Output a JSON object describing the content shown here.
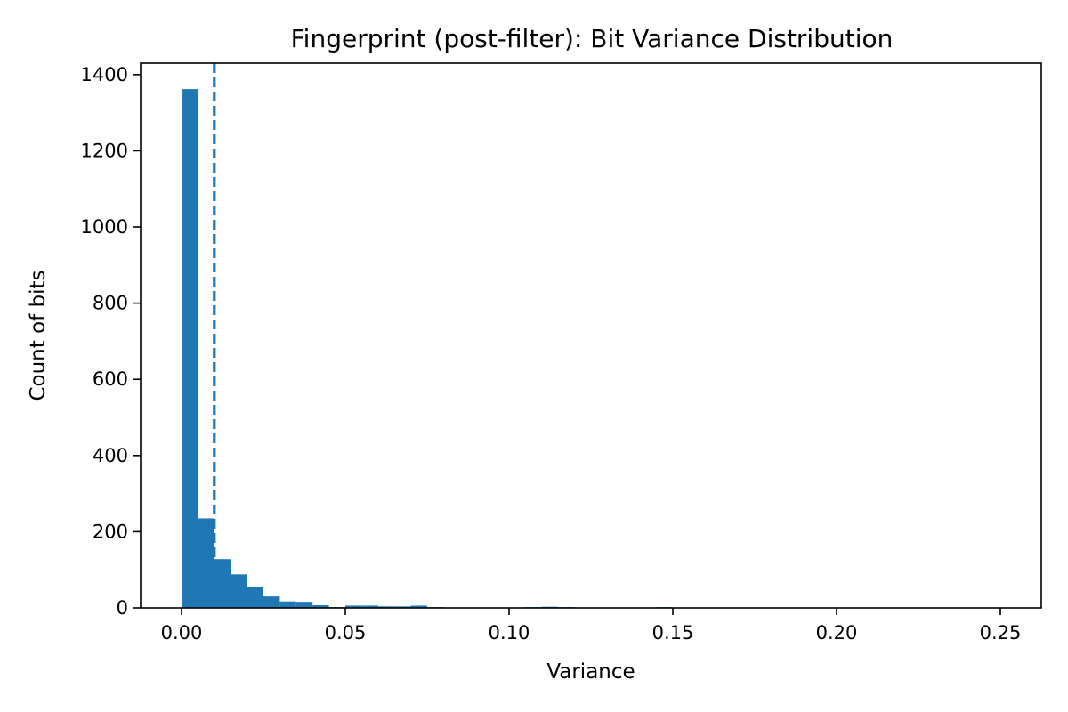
{
  "chart_data": {
    "type": "bar",
    "subtype": "histogram",
    "title": "Fingerprint (post-filter): Bit Variance Distribution",
    "xlabel": "Variance",
    "ylabel": "Count of bits",
    "xlim": [
      -0.0125,
      0.2625
    ],
    "ylim": [
      0,
      1430
    ],
    "xticks": [
      0.0,
      0.05,
      0.1,
      0.15,
      0.2,
      0.25
    ],
    "xtick_labels": [
      "0.00",
      "0.05",
      "0.10",
      "0.15",
      "0.20",
      "0.25"
    ],
    "yticks": [
      0,
      200,
      400,
      600,
      800,
      1000,
      1200,
      1400
    ],
    "ytick_labels": [
      "0",
      "200",
      "400",
      "600",
      "800",
      "1000",
      "1200",
      "1400"
    ],
    "bin_width": 0.005,
    "bin_start": 0.0,
    "counts": [
      1362,
      235,
      128,
      88,
      55,
      30,
      17,
      16,
      7,
      2,
      6,
      6,
      4,
      4,
      6,
      2,
      1,
      1,
      1,
      1,
      1,
      2,
      3,
      2,
      1,
      1,
      0,
      1,
      1,
      2,
      0
    ],
    "bar_color": "#1f77b4",
    "threshold_line": {
      "x": 0.01,
      "style": "dashed",
      "color": "#1f77b4"
    },
    "grid": false,
    "legend": "none"
  }
}
